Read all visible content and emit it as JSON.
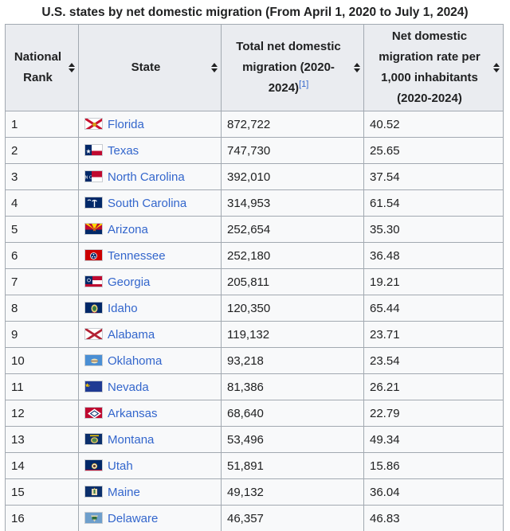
{
  "caption": "U.S. states by net domestic migration (From April 1, 2020 to July 1, 2024)",
  "headers": {
    "rank": "National Rank",
    "state": "State",
    "total_line1": "Total net domestic",
    "total_line2": "migration (2020-",
    "total_line3": "2024)",
    "total_ref": "[1]",
    "rate_line1": "Net domestic",
    "rate_line2": "migration rate per",
    "rate_line3": "1,000 inhabitants",
    "rate_line4": "(2020-2024)"
  },
  "icons": {
    "sort": "sort-both-icon"
  },
  "colors": {
    "link": "#3366cc",
    "header_bg": "#eaecf0",
    "cell_bg": "#f8f9fa",
    "border": "#a2a9b1"
  },
  "rows": [
    {
      "rank": "1",
      "state": "Florida",
      "total": "872,722",
      "rate": "40.52"
    },
    {
      "rank": "2",
      "state": "Texas",
      "total": "747,730",
      "rate": "25.65"
    },
    {
      "rank": "3",
      "state": "North Carolina",
      "total": "392,010",
      "rate": "37.54"
    },
    {
      "rank": "4",
      "state": "South Carolina",
      "total": "314,953",
      "rate": "61.54"
    },
    {
      "rank": "5",
      "state": "Arizona",
      "total": "252,654",
      "rate": "35.30"
    },
    {
      "rank": "6",
      "state": "Tennessee",
      "total": "252,180",
      "rate": "36.48"
    },
    {
      "rank": "7",
      "state": "Georgia",
      "total": "205,811",
      "rate": "19.21"
    },
    {
      "rank": "8",
      "state": "Idaho",
      "total": "120,350",
      "rate": "65.44"
    },
    {
      "rank": "9",
      "state": "Alabama",
      "total": "119,132",
      "rate": "23.71"
    },
    {
      "rank": "10",
      "state": "Oklahoma",
      "total": "93,218",
      "rate": "23.54"
    },
    {
      "rank": "11",
      "state": "Nevada",
      "total": "81,386",
      "rate": "26.21"
    },
    {
      "rank": "12",
      "state": "Arkansas",
      "total": "68,640",
      "rate": "22.79"
    },
    {
      "rank": "13",
      "state": "Montana",
      "total": "53,496",
      "rate": "49.34"
    },
    {
      "rank": "14",
      "state": "Utah",
      "total": "51,891",
      "rate": "15.86"
    },
    {
      "rank": "15",
      "state": "Maine",
      "total": "49,132",
      "rate": "36.04"
    },
    {
      "rank": "16",
      "state": "Delaware",
      "total": "46,357",
      "rate": "46.83"
    }
  ]
}
